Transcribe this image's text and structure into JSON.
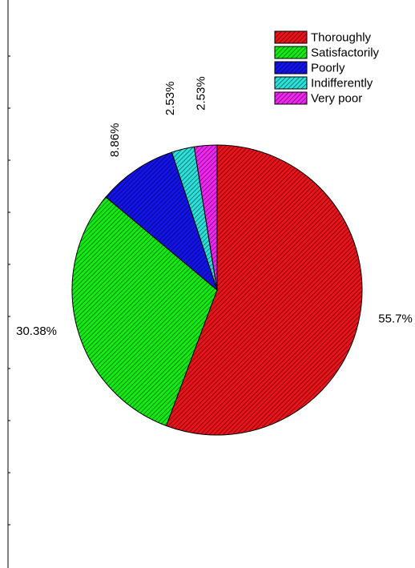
{
  "chart_data": {
    "type": "pie",
    "title": "",
    "legend_position": "top-right",
    "slices": [
      {
        "name": "Thoroughly",
        "value": 55.7,
        "label": "55.7%",
        "color": "#e8141c",
        "hatch": "#5a0000"
      },
      {
        "name": "Satisfactorily",
        "value": 30.38,
        "label": "30.38%",
        "color": "#16e816",
        "hatch": "#005a00"
      },
      {
        "name": "Poorly",
        "value": 8.86,
        "label": "8.86%",
        "color": "#1414e8",
        "hatch": "#00005a"
      },
      {
        "name": "Indifferently",
        "value": 2.53,
        "label": "2.53%",
        "color": "#2ee0d8",
        "hatch": "#004a48"
      },
      {
        "name": "Very poor",
        "value": 2.53,
        "label": "2.53%",
        "color": "#ee28ee",
        "hatch": "#5a005a"
      }
    ]
  }
}
